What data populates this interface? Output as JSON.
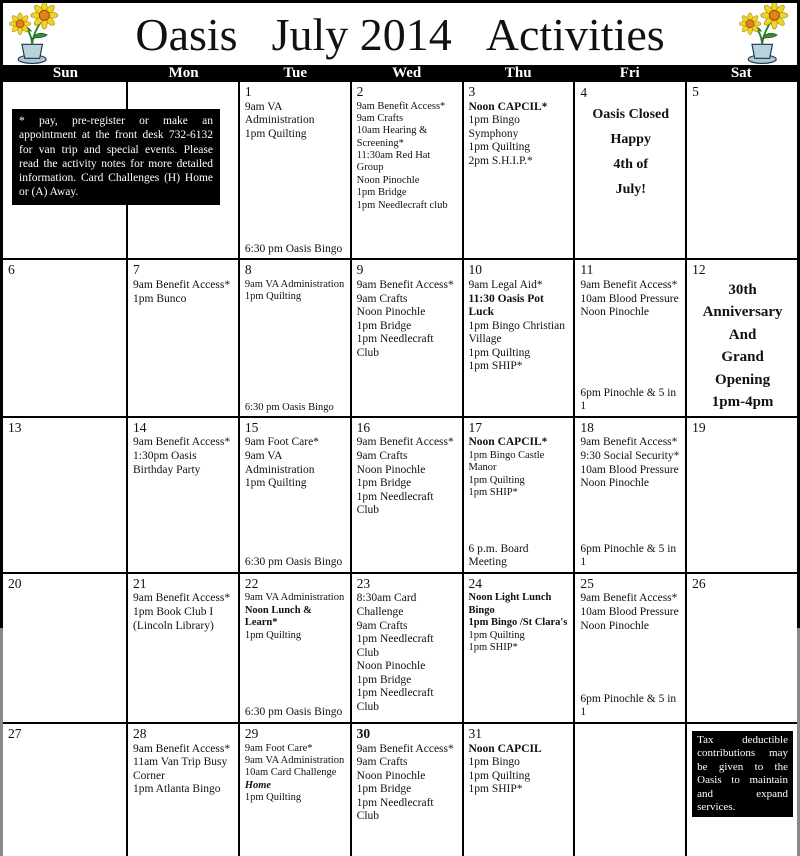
{
  "header": {
    "title_part1": "Oasis",
    "title_part2": "July 2014",
    "title_part3": "Activities",
    "left_icon": "sunflower-pot-icon",
    "right_icon": "sunflower-pot-icon"
  },
  "weekdays": [
    "Sun",
    "Mon",
    "Tue",
    "Wed",
    "Thu",
    "Fri",
    "Sat"
  ],
  "register_note": "* pay, pre-register or make an appointment at the front desk 732-6132 for van trip and special events.  Please read the activity notes for more detailed   information. Card Challenges (H) Home or (A) Away.",
  "tax_note": "Tax deductible contributions may be given to the  Oasis to maintain and expand services.",
  "colors": {
    "grid_line": "#000000",
    "daybar_bg": "#000000",
    "note_bg": "#000000",
    "note_text": "#ffffff",
    "petal": "#f2d322",
    "flower_center": "#e2801c",
    "leaf": "#3a8a3a",
    "pot": "#b9d3de"
  },
  "weeks": [
    [
      {
        "day": "",
        "events": []
      },
      {
        "day": "",
        "events": []
      },
      {
        "day": "1",
        "events": [
          {
            "t": "9am VA Administration"
          },
          {
            "t": "1pm Quilting"
          },
          {
            "t": "6:30 pm Oasis Bingo",
            "g": true
          }
        ]
      },
      {
        "day": "2",
        "events": [
          {
            "t": "9am Benefit Access*",
            "s": true
          },
          {
            "t": "9am Crafts",
            "s": true
          },
          {
            "t": "10am Hearing & Screening*",
            "s": true
          },
          {
            "t": "11:30am Red Hat Group",
            "s": true
          },
          {
            "t": "Noon Pinochle",
            "s": true
          },
          {
            "t": "1pm Bridge",
            "s": true
          },
          {
            "t": "1pm Needlecraft club",
            "s": true
          }
        ]
      },
      {
        "day": "3",
        "events": [
          {
            "t": "Noon CAPCIL*",
            "b": true
          },
          {
            "t": "1pm Bingo Symphony"
          },
          {
            "t": "1pm Quilting"
          },
          {
            "t": "2pm S.H.I.P.*"
          }
        ]
      },
      {
        "day": "4",
        "variant": "holiday",
        "events": [
          {
            "t": "Oasis Closed",
            "b": true
          },
          {
            "t": "Happy",
            "b": true
          },
          {
            "t": "4th of",
            "b": true
          },
          {
            "t": "July!",
            "b": true
          }
        ]
      },
      {
        "day": "5",
        "events": []
      }
    ],
    [
      {
        "day": "6",
        "events": []
      },
      {
        "day": "7",
        "events": [
          {
            "t": "9am Benefit Access*"
          },
          {
            "t": "1pm Bunco"
          }
        ]
      },
      {
        "day": "8",
        "events": [
          {
            "t": "9am VA Administration",
            "s": true
          },
          {
            "t": "1pm Quilting",
            "s": true
          },
          {
            "t": "6:30 pm Oasis Bingo",
            "s": true,
            "g": true
          }
        ]
      },
      {
        "day": "9",
        "events": [
          {
            "t": "9am Benefit Access*"
          },
          {
            "t": "9am Crafts"
          },
          {
            "t": "Noon Pinochle"
          },
          {
            "t": "1pm Bridge"
          },
          {
            "t": "1pm Needlecraft Club"
          }
        ]
      },
      {
        "day": "10",
        "events": [
          {
            "t": "9am Legal Aid*"
          },
          {
            "t": "11:30 Oasis Pot Luck",
            "b": true
          },
          {
            "t": "1pm Bingo Christian Village"
          },
          {
            "t": "1pm Quilting"
          },
          {
            "t": "1pm SHIP*"
          }
        ]
      },
      {
        "day": "11",
        "events": [
          {
            "t": "9am Benefit Access*"
          },
          {
            "t": "10am Blood Pressure"
          },
          {
            "t": "Noon Pinochle"
          },
          {
            "t": "6pm Pinochle & 5 in 1",
            "g": true
          }
        ]
      },
      {
        "day": "12",
        "variant": "anniv",
        "events": [
          {
            "t": "30th Anniversary",
            "b": true
          },
          {
            "t": "And",
            "b": true
          },
          {
            "t": "Grand Opening",
            "b": true
          },
          {
            "t": "1pm-4pm",
            "b": true
          }
        ]
      }
    ],
    [
      {
        "day": "13",
        "events": []
      },
      {
        "day": "14",
        "events": [
          {
            "t": "9am Benefit Access*"
          },
          {
            "t": "1:30pm Oasis Birthday Party"
          }
        ]
      },
      {
        "day": "15",
        "events": [
          {
            "t": "9am Foot Care*"
          },
          {
            "t": "9am VA Administration"
          },
          {
            "t": "1pm Quilting"
          },
          {
            "t": "6:30 pm Oasis Bingo",
            "g": true
          }
        ]
      },
      {
        "day": "16",
        "events": [
          {
            "t": "9am Benefit Access*"
          },
          {
            "t": "9am Crafts"
          },
          {
            "t": "Noon Pinochle"
          },
          {
            "t": "1pm Bridge"
          },
          {
            "t": "1pm Needlecraft Club"
          }
        ]
      },
      {
        "day": "17",
        "events": [
          {
            "t": "Noon CAPCIL*",
            "b": true
          },
          {
            "t": "1pm Bingo Castle Manor",
            "s": true
          },
          {
            "t": "1pm Quilting",
            "s": true
          },
          {
            "t": "1pm SHIP*",
            "s": true
          },
          {
            "t": "6 p.m. Board Meeting",
            "g": true
          }
        ]
      },
      {
        "day": "18",
        "events": [
          {
            "t": "9am Benefit Access*"
          },
          {
            "t": "9:30 Social Security*"
          },
          {
            "t": "10am Blood Pressure"
          },
          {
            "t": "Noon Pinochle"
          },
          {
            "t": "6pm Pinochle & 5 in 1",
            "g": true
          }
        ]
      },
      {
        "day": "19",
        "events": []
      }
    ],
    [
      {
        "day": "20",
        "events": []
      },
      {
        "day": "21",
        "events": [
          {
            "t": "9am Benefit Access*"
          },
          {
            "t": "1pm Book Club I"
          },
          {
            "t": "(Lincoln Library)"
          }
        ]
      },
      {
        "day": "22",
        "events": [
          {
            "t": "9am VA Administration",
            "s": true
          },
          {
            "t": "Noon Lunch & Learn*",
            "b": true,
            "s": true
          },
          {
            "t": "1pm Quilting",
            "s": true
          },
          {
            "t": "6:30 pm Oasis Bingo",
            "g": true
          }
        ]
      },
      {
        "day": "23",
        "events": [
          {
            "t": "8:30am Card Challenge"
          },
          {
            "t": "9am Crafts"
          },
          {
            "t": "1pm Needlecraft Club"
          },
          {
            "t": "Noon Pinochle"
          },
          {
            "t": "1pm Bridge"
          },
          {
            "t": "1pm Needlecraft Club"
          }
        ]
      },
      {
        "day": "24",
        "events": [
          {
            "t": "Noon Light Lunch Bingo",
            "b": true,
            "s": true
          },
          {
            "t": "1pm Bingo /St Clara's",
            "b": true,
            "s": true
          },
          {
            "t": "1pm Quilting",
            "s": true
          },
          {
            "t": "1pm SHIP*",
            "s": true
          }
        ]
      },
      {
        "day": "25",
        "events": [
          {
            "t": "9am Benefit Access*"
          },
          {
            "t": "10am Blood Pressure"
          },
          {
            "t": "Noon Pinochle"
          },
          {
            "t": "6pm Pinochle & 5 in 1",
            "g": true
          }
        ]
      },
      {
        "day": "26",
        "events": []
      }
    ],
    [
      {
        "day": "27",
        "events": []
      },
      {
        "day": "28",
        "events": [
          {
            "t": "9am Benefit Access*"
          },
          {
            "t": "11am Van Trip Busy Corner"
          },
          {
            "t": "1pm Atlanta Bingo"
          }
        ]
      },
      {
        "day": "29",
        "events": [
          {
            "t": "9am Foot Care*",
            "s": true
          },
          {
            "t": "9am VA Administration",
            "s": true
          },
          {
            "t": "10am Card Challenge ",
            "s": true,
            "em": "Home"
          },
          {
            "t": "1pm Quilting",
            "s": true
          }
        ]
      },
      {
        "day": "30",
        "boldDay": true,
        "events": [
          {
            "t": "9am Benefit Access*"
          },
          {
            "t": "9am Crafts"
          },
          {
            "t": "Noon Pinochle"
          },
          {
            "t": "1pm Bridge"
          },
          {
            "t": "1pm Needlecraft Club"
          }
        ]
      },
      {
        "day": "31",
        "events": [
          {
            "t": "Noon CAPCIL",
            "b": true
          },
          {
            "t": "1pm Bingo"
          },
          {
            "t": "1pm Quilting"
          },
          {
            "t": "1pm SHIP*"
          }
        ]
      },
      {
        "day": "",
        "events": []
      },
      {
        "day": "",
        "events": [],
        "note": "tax_note"
      }
    ]
  ]
}
